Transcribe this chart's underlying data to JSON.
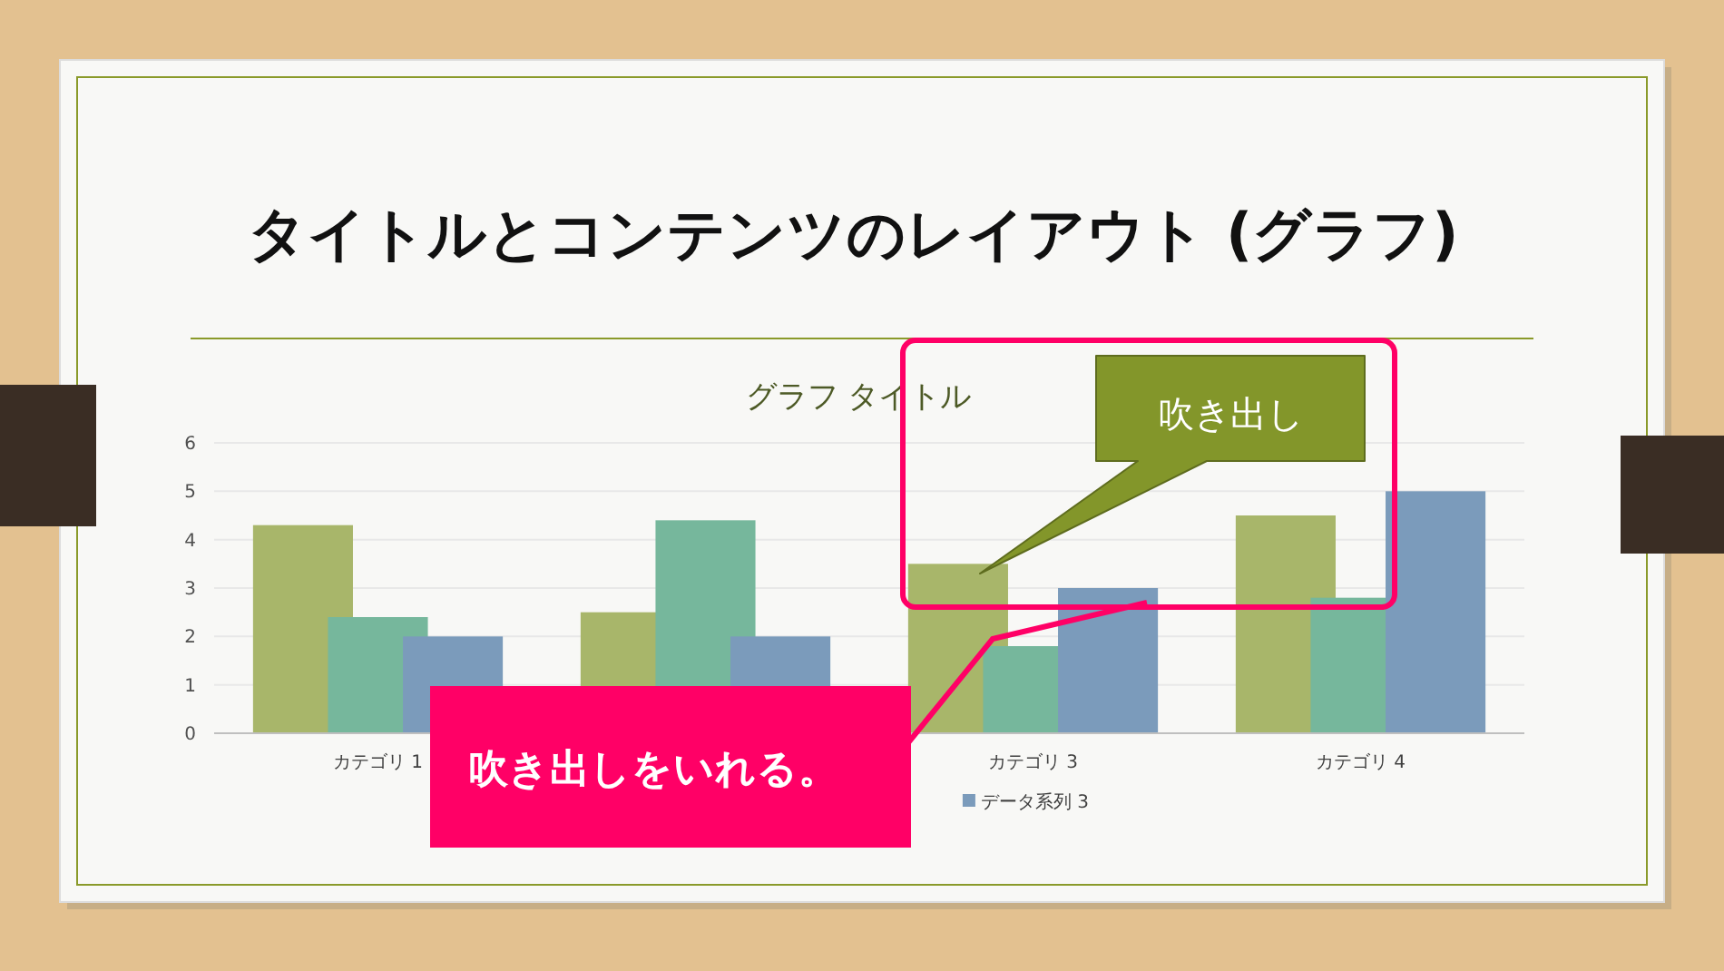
{
  "chart_data": {
    "type": "bar",
    "title": "タイトルとコンテンツのレイアウト (グラフ)",
    "subtitle": "グラフ タイトル",
    "categories": [
      "カテゴリ 1",
      null,
      "カテゴリ 3",
      "カテゴリ 4"
    ],
    "series": [
      {
        "color": "#a8b66a",
        "values": [
          4.3,
          2.5,
          3.5,
          4.5
        ]
      },
      {
        "color": "#76b79c",
        "values": [
          2.4,
          4.4,
          1.8,
          2.8
        ]
      },
      {
        "name": "データ系列 3",
        "color": "#7b9bbb",
        "values": [
          2,
          2,
          3,
          5
        ]
      }
    ],
    "ylim": [
      0,
      6
    ],
    "yticks": [
      0,
      1,
      2,
      3,
      4,
      5,
      6
    ],
    "grid": "y",
    "legend": "bottom",
    "annotations": [
      "吹き出し",
      "吹き出しをいれる。"
    ]
  }
}
